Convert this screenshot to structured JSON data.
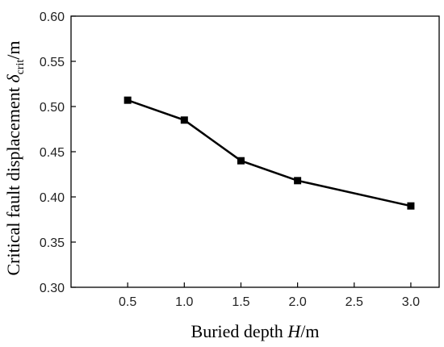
{
  "chart_data": {
    "type": "line",
    "x": [
      0.5,
      1.0,
      1.5,
      2.0,
      3.0
    ],
    "series": [
      {
        "values": [
          0.507,
          0.485,
          0.44,
          0.418,
          0.39
        ]
      }
    ],
    "xlim": [
      0.0,
      3.25
    ],
    "ylim": [
      0.3,
      0.6
    ],
    "x_ticks": [
      "0.5",
      "1.0",
      "1.5",
      "2.0",
      "2.5",
      "3.0"
    ],
    "x_tick_values": [
      0.5,
      1.0,
      1.5,
      2.0,
      2.5,
      3.0
    ],
    "y_ticks": [
      "0.30",
      "0.35",
      "0.40",
      "0.45",
      "0.50",
      "0.55",
      "0.60"
    ],
    "y_tick_values": [
      0.3,
      0.35,
      0.4,
      0.45,
      0.5,
      0.55,
      0.6
    ],
    "xlabel": {
      "prefix": "Buried depth ",
      "symbol": "H",
      "suffix": "/m"
    },
    "ylabel": {
      "prefix": "Critical fault displacement ",
      "symbol": "δ",
      "subscript": "crit",
      "suffix": "/m"
    },
    "marker": "square",
    "line_color": "#000000",
    "grid": false,
    "legend": "none"
  }
}
